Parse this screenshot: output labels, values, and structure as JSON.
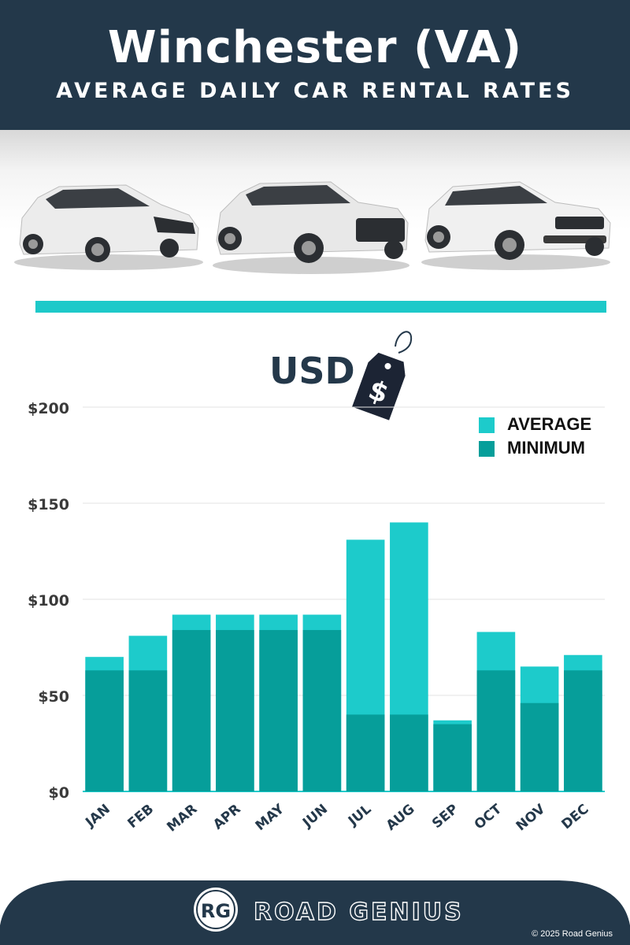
{
  "header": {
    "title": "Winchester (VA)",
    "subtitle": "AVERAGE DAILY CAR RENTAL RATES"
  },
  "currency_label": "USD",
  "price_tag_symbol": "$",
  "colors": {
    "header_bg": "#23384a",
    "average": "#1dcbcb",
    "minimum": "#069e9a",
    "divider": "#1dc9c9"
  },
  "footer": {
    "logo_letters": "RG",
    "brand": "ROAD GENIUS",
    "copyright": "© 2025 Road Genius"
  },
  "chart_data": {
    "type": "bar",
    "stacking": "overlap",
    "categories": [
      "JAN",
      "FEB",
      "MAR",
      "APR",
      "MAY",
      "JUN",
      "JUL",
      "AUG",
      "SEP",
      "OCT",
      "NOV",
      "DEC"
    ],
    "series": [
      {
        "name": "AVERAGE",
        "color": "#1dcbcb",
        "values": [
          70,
          81,
          92,
          92,
          92,
          92,
          131,
          140,
          37,
          83,
          65,
          71
        ]
      },
      {
        "name": "MINIMUM",
        "color": "#069e9a",
        "values": [
          63,
          63,
          84,
          84,
          84,
          84,
          40,
          40,
          35,
          63,
          46,
          63
        ]
      }
    ],
    "yticks": [
      "$0",
      "$50",
      "$100",
      "$150",
      "$200"
    ],
    "ytick_values": [
      0,
      50,
      100,
      150,
      200
    ],
    "ylim": [
      0,
      200
    ],
    "grid": true,
    "legend": "top-right"
  }
}
